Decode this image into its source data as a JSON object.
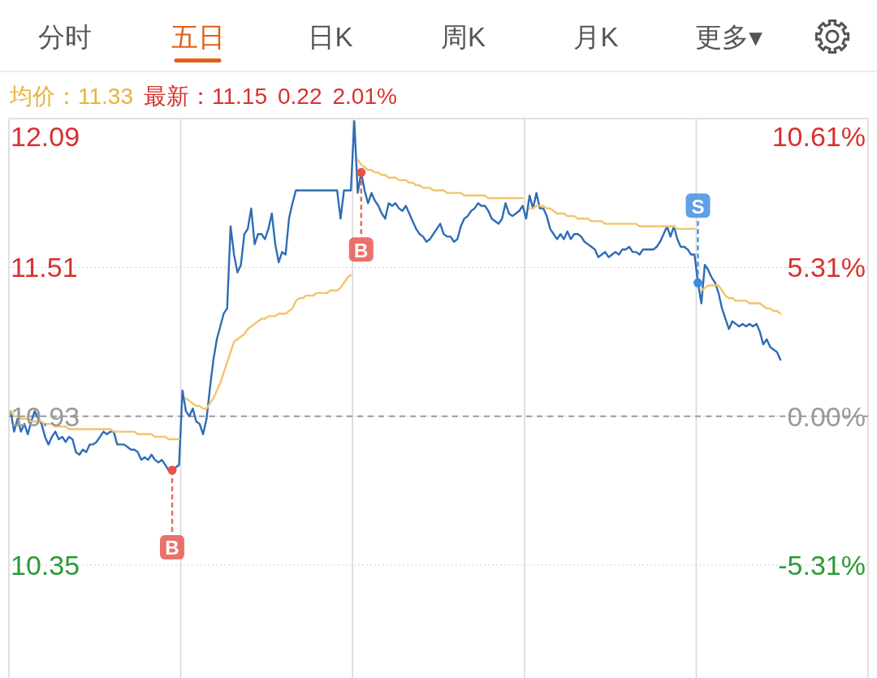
{
  "chart_data": {
    "type": "line",
    "title": "五日",
    "annotations": [
      "分时",
      "日K",
      "周K",
      "月K",
      "更多▾",
      "均价：11.33",
      "最新：11.15",
      "0.22",
      "2.01%"
    ],
    "categories": [
      null,
      null,
      null,
      null,
      null,
      null,
      null,
      null,
      null,
      null,
      null,
      null,
      null,
      null,
      null,
      null,
      null,
      null,
      null,
      null,
      null,
      null,
      null,
      null,
      null,
      null,
      null,
      null,
      null,
      null,
      null,
      null,
      null,
      null,
      null,
      null,
      null,
      null,
      null,
      null,
      null,
      null,
      null,
      null,
      null,
      null,
      null,
      null,
      null,
      null,
      null,
      null,
      null,
      null,
      null,
      null,
      null,
      null,
      null,
      null,
      null,
      null,
      null,
      null,
      null,
      null,
      null,
      null,
      null,
      null,
      null,
      null,
      null,
      null,
      null,
      null,
      null,
      null,
      null,
      null,
      null,
      null,
      null,
      null,
      null,
      null,
      null,
      null,
      null,
      null,
      null,
      null,
      null,
      null,
      null,
      null,
      null,
      null,
      null,
      null,
      null,
      null,
      null,
      null,
      null,
      null,
      null,
      null,
      null,
      null,
      null,
      null,
      null,
      null,
      null,
      null,
      null,
      null,
      null,
      null,
      null,
      null,
      null,
      null,
      null,
      null,
      null,
      null,
      null,
      null,
      null,
      null,
      null,
      null,
      null,
      null,
      null,
      null,
      null,
      null,
      null,
      null,
      null,
      null,
      null,
      null,
      null,
      null,
      null,
      null,
      null,
      null,
      null,
      null,
      null,
      null,
      null,
      null,
      null,
      null,
      null,
      null,
      null,
      null,
      null,
      null,
      null,
      null,
      null,
      null,
      null,
      null,
      null,
      null,
      null,
      null,
      null,
      null,
      null,
      null,
      null,
      null,
      null,
      null,
      null,
      null,
      null,
      null,
      null,
      null,
      null,
      null,
      null,
      null,
      null,
      null,
      null,
      null,
      null,
      null,
      null,
      null,
      null,
      null,
      null,
      null,
      null,
      null,
      null,
      null,
      null,
      null,
      null,
      null,
      null,
      null,
      null,
      null,
      null,
      null,
      null,
      null,
      null,
      null,
      null,
      null,
      null,
      null,
      null,
      null,
      null,
      null,
      null,
      null,
      null,
      null,
      null,
      null,
      null,
      null,
      null,
      null,
      null,
      null,
      null,
      null,
      null,
      null,
      null,
      null
    ],
    "series": [
      {
        "color": "#2e6cb5",
        "values": [
          10.95,
          10.87,
          10.92,
          10.87,
          10.9,
          10.86,
          10.91,
          10.95,
          10.92,
          10.9,
          10.85,
          10.82,
          10.85,
          10.87,
          10.84,
          10.85,
          10.83,
          10.85,
          10.84,
          10.79,
          10.78,
          10.8,
          10.79,
          10.82,
          10.82,
          10.83,
          10.85,
          10.87,
          10.86,
          10.87,
          10.87,
          10.82,
          10.82,
          10.82,
          10.81,
          10.8,
          10.8,
          10.79,
          10.76,
          10.77,
          10.76,
          10.78,
          10.76,
          10.75,
          10.76,
          10.74,
          10.72,
          10.72,
          10.73,
          10.74,
          11.03,
          10.95,
          10.93,
          10.96,
          10.91,
          10.9,
          10.86,
          10.92,
          11.04,
          11.15,
          11.23,
          11.28,
          11.33,
          11.35,
          11.67,
          11.56,
          11.49,
          11.52,
          11.64,
          11.66,
          11.74,
          11.6,
          11.64,
          11.64,
          11.62,
          11.66,
          11.72,
          11.6,
          11.53,
          11.57,
          11.56,
          11.7,
          11.76,
          11.81,
          11.81,
          11.81,
          11.81,
          11.81,
          11.81,
          11.81,
          11.81,
          11.81,
          11.81,
          11.81,
          11.81,
          11.81,
          11.7,
          11.81,
          11.81,
          11.81,
          12.08,
          11.8,
          11.88,
          11.81,
          11.76,
          11.8,
          11.77,
          11.75,
          11.72,
          11.7,
          11.76,
          11.75,
          11.76,
          11.74,
          11.73,
          11.75,
          11.72,
          11.69,
          11.66,
          11.64,
          11.63,
          11.61,
          11.62,
          11.64,
          11.66,
          11.68,
          11.64,
          11.63,
          11.63,
          11.61,
          11.62,
          11.67,
          11.7,
          11.71,
          11.73,
          11.74,
          11.76,
          11.75,
          11.75,
          11.73,
          11.7,
          11.69,
          11.68,
          11.7,
          11.76,
          11.72,
          11.71,
          11.72,
          11.73,
          11.75,
          11.7,
          11.79,
          11.74,
          11.8,
          11.74,
          11.74,
          11.71,
          11.66,
          11.64,
          11.62,
          11.64,
          11.62,
          11.65,
          11.62,
          11.64,
          11.64,
          11.63,
          11.61,
          11.6,
          11.59,
          11.58,
          11.55,
          11.56,
          11.57,
          11.55,
          11.56,
          11.57,
          11.56,
          11.58,
          11.58,
          11.59,
          11.57,
          11.57,
          11.56,
          11.58,
          11.58,
          11.58,
          11.58,
          11.59,
          11.61,
          11.64,
          11.67,
          11.63,
          11.67,
          11.62,
          11.59,
          11.59,
          11.58,
          11.56,
          11.56,
          11.45,
          11.37,
          11.52,
          11.5,
          11.47,
          11.45,
          11.41,
          11.35,
          11.31,
          11.27,
          11.3,
          11.29,
          11.28,
          11.29,
          11.28,
          11.29,
          11.28,
          11.29,
          11.26,
          11.21,
          11.23,
          11.2,
          11.19,
          11.18,
          11.15,
          null,
          null,
          null,
          null,
          null,
          null,
          null,
          null,
          null,
          null,
          null,
          null,
          null,
          null,
          null,
          null,
          null,
          null,
          null,
          null,
          null,
          null,
          null,
          null,
          null
        ]
      },
      {
        "color": "#f2c46a",
        "values": [
          10.95,
          10.93,
          10.93,
          10.92,
          10.92,
          10.92,
          10.91,
          10.91,
          10.91,
          10.91,
          10.9,
          10.9,
          10.9,
          10.89,
          10.89,
          10.89,
          10.89,
          10.88,
          10.88,
          10.88,
          10.88,
          10.88,
          10.88,
          10.88,
          10.88,
          10.88,
          10.88,
          10.88,
          10.88,
          10.88,
          10.87,
          10.87,
          10.87,
          10.87,
          10.87,
          10.87,
          10.87,
          10.86,
          10.86,
          10.86,
          10.86,
          10.86,
          10.85,
          10.85,
          10.85,
          10.85,
          10.84,
          10.84,
          10.84,
          10.84,
          null,
          11.0,
          10.99,
          10.98,
          10.97,
          10.97,
          10.96,
          10.96,
          10.98,
          11.0,
          11.03,
          11.06,
          11.1,
          11.14,
          11.18,
          11.22,
          11.23,
          11.24,
          11.25,
          11.27,
          11.28,
          11.29,
          11.3,
          11.31,
          11.31,
          11.32,
          11.32,
          11.32,
          11.33,
          11.33,
          11.33,
          11.34,
          11.35,
          11.38,
          11.39,
          11.39,
          11.4,
          11.4,
          11.4,
          11.41,
          11.41,
          11.41,
          11.41,
          11.42,
          11.42,
          11.42,
          11.43,
          11.45,
          11.47,
          11.48,
          null,
          11.93,
          11.91,
          11.9,
          11.89,
          11.89,
          11.88,
          11.88,
          11.87,
          11.87,
          11.86,
          11.86,
          11.86,
          11.85,
          11.85,
          11.85,
          11.84,
          11.84,
          11.83,
          11.83,
          11.82,
          11.82,
          11.82,
          11.81,
          11.81,
          11.81,
          11.81,
          11.8,
          11.8,
          11.8,
          11.8,
          11.8,
          11.79,
          11.79,
          11.79,
          11.79,
          11.79,
          11.79,
          11.79,
          11.78,
          11.78,
          11.78,
          11.78,
          11.78,
          11.78,
          11.78,
          11.78,
          11.78,
          11.78,
          11.78,
          null,
          11.74,
          11.74,
          11.75,
          11.75,
          11.75,
          11.74,
          11.74,
          11.73,
          11.72,
          11.72,
          11.72,
          11.71,
          11.71,
          11.71,
          11.7,
          11.7,
          11.7,
          11.7,
          11.69,
          11.69,
          11.69,
          11.69,
          11.68,
          11.68,
          11.68,
          11.68,
          11.68,
          11.68,
          11.68,
          11.68,
          11.68,
          11.68,
          11.67,
          11.67,
          11.67,
          11.67,
          11.67,
          11.67,
          11.67,
          11.67,
          11.67,
          11.67,
          11.67,
          11.66,
          11.66,
          11.66,
          11.66,
          11.66,
          11.66,
          null,
          11.42,
          11.43,
          11.44,
          11.44,
          11.44,
          11.44,
          11.42,
          11.4,
          11.39,
          11.39,
          11.38,
          11.38,
          11.38,
          11.38,
          11.37,
          11.37,
          11.37,
          11.37,
          11.36,
          11.35,
          11.35,
          11.34,
          11.34,
          11.33,
          null,
          null,
          null,
          null,
          null,
          null,
          null,
          null,
          null,
          null,
          null,
          null,
          null,
          null,
          null,
          null,
          null,
          null,
          null,
          null,
          null,
          null,
          null,
          null,
          null
        ]
      },
      {
        "type": "scatter",
        "name": "B",
        "color": "#e5534b",
        "marker": "circle",
        "values": [
          null,
          null,
          null,
          null,
          null,
          null,
          null,
          null,
          null,
          null,
          null,
          null,
          null,
          null,
          null,
          null,
          null,
          null,
          null,
          null,
          null,
          null,
          null,
          null,
          null,
          null,
          null,
          null,
          null,
          null,
          null,
          null,
          null,
          null,
          null,
          null,
          null,
          null,
          null,
          null,
          null,
          null,
          null,
          null,
          null,
          null,
          null,
          10.72,
          null,
          null,
          null,
          null,
          null,
          null,
          null,
          null,
          null,
          null,
          null,
          null,
          null,
          null,
          null,
          null,
          null,
          null,
          null,
          null,
          null,
          null,
          null,
          null,
          null,
          null,
          null,
          null,
          null,
          null,
          null,
          null,
          null,
          null,
          null,
          null,
          null,
          null,
          null,
          null,
          null,
          null,
          null,
          null,
          null,
          null,
          null,
          null,
          null,
          null,
          null,
          null,
          null,
          null,
          11.88,
          null,
          null,
          null,
          null,
          null,
          null,
          null,
          null,
          null,
          null,
          null,
          null,
          null,
          null,
          null,
          null,
          null,
          null,
          null,
          null,
          null,
          null,
          null,
          null,
          null,
          null,
          null,
          null,
          null,
          null,
          null,
          null,
          null,
          null,
          null,
          null,
          null,
          null,
          null,
          null,
          null,
          null,
          null,
          null,
          null,
          null,
          null,
          null,
          null,
          null,
          null,
          null,
          null,
          null,
          null,
          null,
          null,
          null,
          null,
          null,
          null,
          null,
          null,
          null,
          null,
          null,
          null,
          null,
          null,
          null,
          null,
          null,
          null,
          null,
          null,
          null,
          null,
          null,
          null,
          null,
          null,
          null,
          null,
          null,
          null,
          null,
          null,
          null,
          null,
          null,
          null,
          null,
          null,
          null,
          null,
          null,
          null,
          null,
          null,
          null,
          null,
          null,
          null,
          null,
          null,
          null,
          null,
          null,
          null,
          null,
          null,
          null,
          null,
          null,
          null,
          null,
          null,
          null,
          null,
          null,
          null,
          null,
          null,
          null,
          null,
          null,
          null,
          null,
          null,
          null,
          null,
          null,
          null,
          null,
          null,
          null,
          null,
          null,
          null,
          null,
          null,
          null,
          null,
          null,
          null,
          null,
          null
        ]
      },
      {
        "type": "scatter",
        "name": "S",
        "color": "#3d8be0",
        "marker": "circle",
        "values": [
          null,
          null,
          null,
          null,
          null,
          null,
          null,
          null,
          null,
          null,
          null,
          null,
          null,
          null,
          null,
          null,
          null,
          null,
          null,
          null,
          null,
          null,
          null,
          null,
          null,
          null,
          null,
          null,
          null,
          null,
          null,
          null,
          null,
          null,
          null,
          null,
          null,
          null,
          null,
          null,
          null,
          null,
          null,
          null,
          null,
          null,
          null,
          null,
          null,
          null,
          null,
          null,
          null,
          null,
          null,
          null,
          null,
          null,
          null,
          null,
          null,
          null,
          null,
          null,
          null,
          null,
          null,
          null,
          null,
          null,
          null,
          null,
          null,
          null,
          null,
          null,
          null,
          null,
          null,
          null,
          null,
          null,
          null,
          null,
          null,
          null,
          null,
          null,
          null,
          null,
          null,
          null,
          null,
          null,
          null,
          null,
          null,
          null,
          null,
          null,
          null,
          null,
          null,
          null,
          null,
          null,
          null,
          null,
          null,
          null,
          null,
          null,
          null,
          null,
          null,
          null,
          null,
          null,
          null,
          null,
          null,
          null,
          null,
          null,
          null,
          null,
          null,
          null,
          null,
          null,
          null,
          null,
          null,
          null,
          null,
          null,
          null,
          null,
          null,
          null,
          null,
          null,
          null,
          null,
          null,
          null,
          null,
          null,
          null,
          null,
          null,
          null,
          null,
          null,
          null,
          null,
          null,
          null,
          null,
          null,
          null,
          null,
          null,
          null,
          null,
          null,
          null,
          null,
          null,
          null,
          null,
          null,
          null,
          null,
          null,
          null,
          null,
          null,
          null,
          null,
          null,
          null,
          null,
          null,
          null,
          null,
          null,
          null,
          null,
          null,
          null,
          null,
          null,
          null,
          null,
          null,
          null,
          null,
          null,
          null,
          11.45,
          null,
          null,
          null,
          null,
          null,
          null,
          null,
          null,
          null,
          null,
          null,
          null,
          null,
          null,
          null,
          null,
          null,
          null,
          null,
          null,
          null,
          null,
          null,
          null,
          null,
          null,
          null,
          null,
          null,
          null,
          null,
          null,
          null,
          null,
          null,
          null,
          null,
          null,
          null,
          null,
          null,
          null,
          null,
          null,
          null,
          null,
          null,
          null,
          null
        ]
      }
    ],
    "ylim": [
      9.91,
      12.09
    ],
    "yticks": [
      12.09,
      11.51,
      10.93,
      10.35
    ],
    "y2lim": [
      -9.33,
      10.61
    ],
    "y2ticks": [
      {
        "value": 10.61,
        "label": "10.61%"
      },
      {
        "value": 5.31,
        "label": "5.31%"
      },
      {
        "value": 0,
        "label": "0.00%"
      },
      {
        "value": -5.31,
        "label": "-5.31%"
      }
    ],
    "grid": "y",
    "ref_lines": [
      {
        "axis": "y",
        "value": 10.93,
        "color": "#8c8c8c",
        "line_style": "dashed"
      }
    ]
  }
}
